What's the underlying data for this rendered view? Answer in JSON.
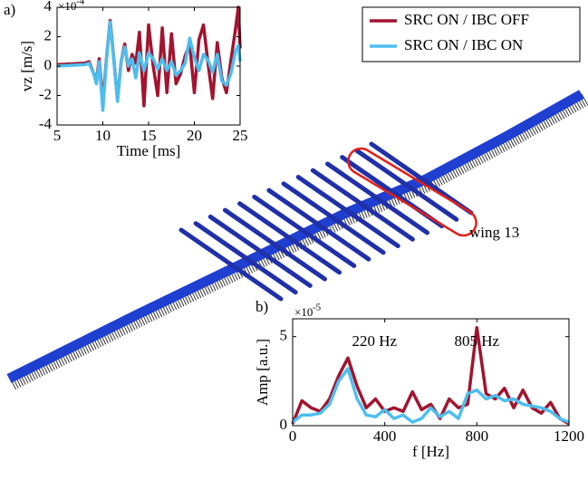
{
  "chart_data": [
    {
      "type": "line",
      "panel_label": "a)",
      "x_label": "Time [ms]",
      "y_label": "vz [m/s]",
      "y_multiplier": {
        "base": "×10",
        "exponent": "-4"
      },
      "x": [
        5,
        8,
        8.5,
        9,
        9.3,
        9.6,
        10,
        10.4,
        10.8,
        11.2,
        11.6,
        12,
        12.4,
        12.8,
        13.2,
        13.6,
        14,
        14.5,
        15,
        15.5,
        16,
        16.5,
        17,
        17.5,
        18,
        18.5,
        19,
        19.5,
        20,
        20.5,
        21,
        21.5,
        22,
        22.5,
        23,
        23.5,
        24,
        24.5,
        24.8,
        25
      ],
      "series": [
        {
          "name": "SRC ON / IBC OFF",
          "color": "#a2142f",
          "values": [
            0.1,
            0.2,
            0.3,
            -0.5,
            -1.0,
            0.5,
            -2.5,
            0.5,
            3.1,
            0.5,
            -2.3,
            0.3,
            1.5,
            -0.3,
            0.8,
            0.2,
            2.3,
            -2.7,
            2.8,
            0,
            -2.0,
            2.6,
            -1.8,
            2.2,
            -1.2,
            -0.5,
            0.7,
            1.5,
            -1.8,
            1.8,
            2.8,
            0.2,
            -2.2,
            1.6,
            -0.8,
            -1.8,
            0.4,
            2.5,
            4.0,
            1.2
          ]
        },
        {
          "name": "SRC ON / IBC ON",
          "color": "#4dbeee",
          "values": [
            0,
            0.1,
            0.2,
            -0.5,
            -1.2,
            0.3,
            -3.0,
            0.4,
            3.0,
            0.4,
            -2.4,
            0.3,
            1.3,
            0,
            0.5,
            -0.8,
            0.9,
            -0.3,
            0.9,
            0.5,
            -0.2,
            0.5,
            -0.3,
            0.3,
            -0.6,
            -0.3,
            0.2,
            1.9,
            0.6,
            -0.3,
            0.8,
            0.4,
            -0.4,
            0.8,
            -1.0,
            -1.3,
            -0.5,
            1.0,
            1.4,
            0.3
          ]
        }
      ],
      "xlim": [
        5,
        25
      ],
      "xticks": [
        5,
        10,
        15,
        20,
        25
      ],
      "ylim": [
        -4,
        4
      ],
      "yticks": [
        -4,
        -2,
        0,
        2,
        4
      ]
    },
    {
      "type": "line",
      "panel_label": "b)",
      "x_label": "f [Hz]",
      "y_label": "Amp [a.u.]",
      "y_multiplier": {
        "base": "×10",
        "exponent": "-5"
      },
      "annotations": [
        "220 Hz",
        "805 Hz"
      ],
      "x": [
        0,
        40,
        80,
        120,
        160,
        200,
        240,
        280,
        320,
        360,
        400,
        440,
        480,
        520,
        560,
        600,
        640,
        680,
        720,
        760,
        800,
        840,
        880,
        920,
        960,
        1000,
        1040,
        1080,
        1120,
        1160,
        1200
      ],
      "series": [
        {
          "color": "#a2142f",
          "values": [
            0.1,
            1.4,
            1.0,
            0.8,
            1.5,
            2.8,
            3.8,
            2.2,
            1.0,
            1.5,
            0.8,
            1.0,
            0.8,
            1.9,
            0.9,
            1.2,
            0.4,
            1.5,
            1.0,
            1.2,
            5.5,
            1.8,
            1.5,
            2.1,
            1.0,
            2.0,
            1.0,
            0.7,
            1.3,
            0.4,
            0.1
          ]
        },
        {
          "color": "#4dbeee",
          "values": [
            0.2,
            0.6,
            0.6,
            0.7,
            1.2,
            2.5,
            3.2,
            1.5,
            0.6,
            0.5,
            0.9,
            0.4,
            0.6,
            0.2,
            0.4,
            1.0,
            0.5,
            0.8,
            0.4,
            1.8,
            2.0,
            1.5,
            1.7,
            1.4,
            1.5,
            1.2,
            1.1,
            1.0,
            0.8,
            0.4,
            0.2
          ]
        }
      ],
      "xlim": [
        0,
        1200
      ],
      "xticks": [
        0,
        400,
        800,
        1200
      ],
      "ylim": [
        0,
        6
      ],
      "yticks": [
        0,
        5
      ]
    }
  ],
  "image_labels": [
    "wing 13"
  ]
}
